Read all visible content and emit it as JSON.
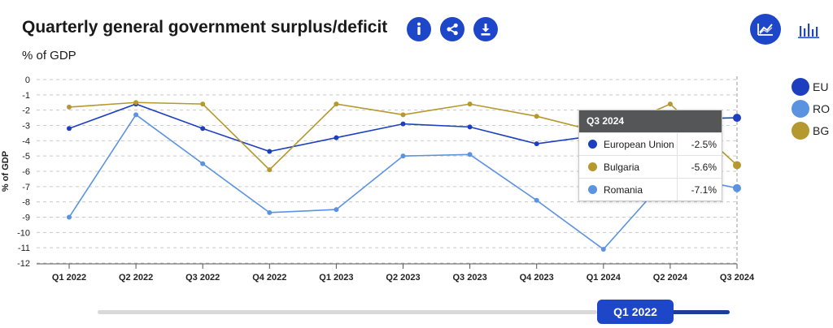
{
  "header": {
    "title": "Quarterly general government surplus/deficit",
    "subtitle": "% of GDP",
    "info_icon": "info-icon",
    "share_icon": "share-icon",
    "download_icon": "download-icon",
    "line_view_icon": "line-chart-icon",
    "bar_view_icon": "bar-chart-icon",
    "accent_color": "#1d46c8"
  },
  "chart_data": {
    "type": "line",
    "ylabel": "% of GDP",
    "xlabel": "",
    "categories": [
      "Q1 2022",
      "Q2 2022",
      "Q3 2022",
      "Q4 2022",
      "Q1 2023",
      "Q2 2023",
      "Q3 2023",
      "Q4 2023",
      "Q1 2024",
      "Q2 2024",
      "Q3 2024"
    ],
    "yticks": [
      0,
      -1,
      -2,
      -3,
      -4,
      -5,
      -6,
      -7,
      -8,
      -9,
      -10,
      -11,
      -12
    ],
    "ylim": [
      -12,
      0
    ],
    "grid": true,
    "legend_position": "right",
    "series": [
      {
        "name": "EU",
        "color": "#1d3fbf",
        "values": [
          -3.2,
          -1.6,
          -3.2,
          -4.7,
          -3.8,
          -2.9,
          -3.1,
          -4.2,
          -3.6,
          -2.6,
          -2.5
        ]
      },
      {
        "name": "RO",
        "color": "#5b93e0",
        "values": [
          -9.0,
          -2.3,
          -5.5,
          -8.7,
          -8.5,
          -5.0,
          -4.9,
          -7.9,
          -11.1,
          -6.2,
          -7.1
        ]
      },
      {
        "name": "BG",
        "color": "#b5982e",
        "values": [
          -1.8,
          -1.5,
          -1.6,
          -5.9,
          -1.6,
          -2.3,
          -1.6,
          -2.4,
          -3.5,
          -1.6,
          -5.6
        ]
      }
    ]
  },
  "legend": {
    "items": [
      {
        "label": "EU",
        "color": "#1d3fbf"
      },
      {
        "label": "RO",
        "color": "#5b93e0"
      },
      {
        "label": "BG",
        "color": "#b5982e"
      }
    ]
  },
  "tooltip": {
    "title": "Q3 2024",
    "rows": [
      {
        "name": "European Union",
        "value": "-2.5%",
        "color": "#1d3fbf"
      },
      {
        "name": "Bulgaria",
        "value": "-5.6%",
        "color": "#b5982e"
      },
      {
        "name": "Romania",
        "value": "-7.1%",
        "color": "#5b93e0"
      }
    ]
  },
  "slider": {
    "handle_label": "Q1 2022"
  }
}
